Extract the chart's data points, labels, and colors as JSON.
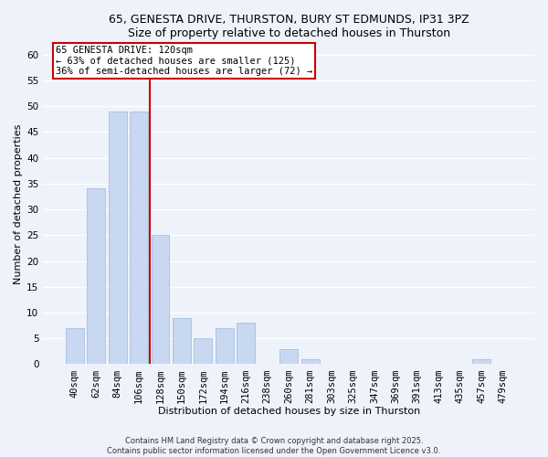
{
  "title": "65, GENESTA DRIVE, THURSTON, BURY ST EDMUNDS, IP31 3PZ",
  "subtitle": "Size of property relative to detached houses in Thurston",
  "xlabel": "Distribution of detached houses by size in Thurston",
  "ylabel": "Number of detached properties",
  "bar_color": "#c8d8f0",
  "bar_edge_color": "#a8c0dc",
  "categories": [
    "40sqm",
    "62sqm",
    "84sqm",
    "106sqm",
    "128sqm",
    "150sqm",
    "172sqm",
    "194sqm",
    "216sqm",
    "238sqm",
    "260sqm",
    "281sqm",
    "303sqm",
    "325sqm",
    "347sqm",
    "369sqm",
    "391sqm",
    "413sqm",
    "435sqm",
    "457sqm",
    "479sqm"
  ],
  "values": [
    7,
    34,
    49,
    49,
    25,
    9,
    5,
    7,
    8,
    0,
    3,
    1,
    0,
    0,
    0,
    0,
    0,
    0,
    0,
    1,
    0
  ],
  "ylim": [
    0,
    62
  ],
  "yticks": [
    0,
    5,
    10,
    15,
    20,
    25,
    30,
    35,
    40,
    45,
    50,
    55,
    60
  ],
  "property_label": "65 GENESTA DRIVE: 120sqm",
  "annotation_line1": "← 63% of detached houses are smaller (125)",
  "annotation_line2": "36% of semi-detached houses are larger (72) →",
  "footer_line1": "Contains HM Land Registry data © Crown copyright and database right 2025.",
  "footer_line2": "Contains public sector information licensed under the Open Government Licence v3.0.",
  "bg_color": "#eef2fb",
  "grid_color": "#ffffff",
  "red_line_index": 3.5,
  "title_fontsize": 9,
  "subtitle_fontsize": 8.5,
  "xlabel_fontsize": 8,
  "ylabel_fontsize": 8,
  "tick_fontsize": 7.5,
  "annot_fontsize": 7.5,
  "footer_fontsize": 6
}
